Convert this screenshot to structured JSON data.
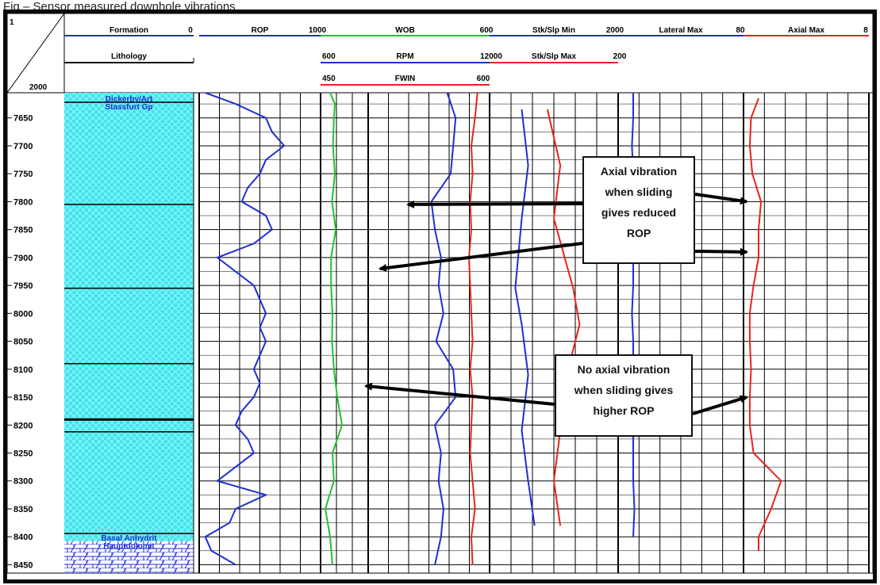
{
  "caption": "Fig  – Sensor measured downhole vibrations",
  "chart_data": {
    "type": "line",
    "corner_labels": {
      "top": "1",
      "bottom": "2000"
    },
    "header_tracks": {
      "row1": [
        {
          "name": "Formation",
          "left": "",
          "right": "0",
          "color": "#1f2fd0"
        },
        {
          "name": "ROP",
          "left": "",
          "right": "1000",
          "color": "#1f2fd0"
        },
        {
          "name": "WOB",
          "left": "",
          "right": "600",
          "color": "#22c22e"
        },
        {
          "name": "Stk/Slp Min",
          "left": "",
          "right": "2000",
          "color": "#1f2fd0"
        },
        {
          "name": "Lateral Max",
          "left": "",
          "right": "80",
          "color": "#1f2fd0"
        },
        {
          "name": "Axial Max",
          "left": "",
          "right": "8",
          "color": "#e8231f"
        }
      ],
      "row2": [
        {
          "name": "Lithology",
          "left": "",
          "right": "",
          "color": "#111111"
        },
        {
          "name": "RPM",
          "left": "600",
          "right": "12000",
          "color": "#1f2fd0"
        },
        {
          "name": "Stk/Slp Max",
          "left": "",
          "right": "200",
          "color": "#e8231f"
        }
      ],
      "row3": [
        {
          "name": "FWIN",
          "left": "450",
          "right": "600",
          "color": "#e8231f"
        }
      ]
    },
    "depth_axis": {
      "ylim": [
        7605,
        8465
      ],
      "ticks": [
        7650,
        7700,
        7750,
        7800,
        7850,
        7900,
        7950,
        8000,
        8050,
        8100,
        8150,
        8200,
        8250,
        8300,
        8350,
        8400,
        8450
      ]
    },
    "formations": [
      {
        "name": "Dickerby/Art",
        "top": 7608
      },
      {
        "name": "Stassfurt Gp",
        "top": 7622
      },
      {
        "name": "Basal Anhydrit",
        "top": 8394
      },
      {
        "name": "Hauptdolomit",
        "top": 8408
      }
    ],
    "lithology_boundaries": [
      7622,
      7805,
      7955,
      8090,
      8190,
      8212,
      8394
    ],
    "series": [
      {
        "name": "ROP",
        "track": 1,
        "color": "#1f2fd0",
        "depth": [
          7605,
          7625,
          7650,
          7675,
          7700,
          7725,
          7750,
          7775,
          7800,
          7825,
          7850,
          7875,
          7900,
          7925,
          7950,
          7975,
          8000,
          8025,
          8050,
          8075,
          8100,
          8125,
          8150,
          8175,
          8200,
          8225,
          8250,
          8275,
          8300,
          8325,
          8350,
          8375,
          8400,
          8425,
          8450
        ],
        "value": [
          0.05,
          0.3,
          0.55,
          0.6,
          0.7,
          0.55,
          0.5,
          0.4,
          0.35,
          0.55,
          0.6,
          0.45,
          0.15,
          0.3,
          0.45,
          0.5,
          0.55,
          0.5,
          0.55,
          0.5,
          0.45,
          0.5,
          0.45,
          0.35,
          0.3,
          0.4,
          0.45,
          0.3,
          0.15,
          0.55,
          0.3,
          0.25,
          0.05,
          0.1,
          0.3
        ]
      },
      {
        "name": "WOB",
        "track": 2,
        "color": "#22c22e",
        "depth": [
          7605,
          7625,
          7650,
          7700,
          7750,
          7800,
          7850,
          7900,
          7950,
          8000,
          8050,
          8100,
          8150,
          8200,
          8250,
          8300,
          8350,
          8400,
          8450
        ],
        "value": [
          0.2,
          0.3,
          0.28,
          0.26,
          0.3,
          0.24,
          0.32,
          0.22,
          0.22,
          0.25,
          0.24,
          0.28,
          0.35,
          0.45,
          0.25,
          0.28,
          0.1,
          0.2,
          0.25
        ]
      },
      {
        "name": "FWIN",
        "track": 3,
        "color": "#e8231f",
        "depth": [
          7605,
          7650,
          7700,
          7750,
          7800,
          7850,
          7900,
          7950,
          8000,
          8050,
          8100,
          8150,
          8200,
          8250,
          8300,
          8350,
          8400,
          8450
        ],
        "value": [
          0.9,
          0.88,
          0.85,
          0.86,
          0.84,
          0.85,
          0.83,
          0.84,
          0.85,
          0.86,
          0.84,
          0.86,
          0.85,
          0.84,
          0.86,
          0.88,
          0.85,
          0.86
        ]
      },
      {
        "name": "RPM",
        "track": 3,
        "color": "#1f2fd0",
        "depth": [
          7605,
          7650,
          7700,
          7750,
          7800,
          7850,
          7900,
          7950,
          8000,
          8050,
          8100,
          8150,
          8200,
          8250,
          8300,
          8350,
          8400,
          8450
        ],
        "value": [
          0.65,
          0.72,
          0.7,
          0.68,
          0.52,
          0.55,
          0.6,
          0.58,
          0.62,
          0.56,
          0.7,
          0.72,
          0.55,
          0.6,
          0.58,
          0.62,
          0.6,
          0.55
        ]
      },
      {
        "name": "Stk/Slp Max",
        "track": 4,
        "color": "#e8231f",
        "depth": [
          7635,
          7735,
          7830,
          7955,
          8020,
          8110,
          8210,
          8300,
          8380
        ],
        "value": [
          0.45,
          0.55,
          0.5,
          0.65,
          0.7,
          0.6,
          0.55,
          0.5,
          0.55
        ]
      },
      {
        "name": "Stk/Slp Min",
        "track": 4,
        "color": "#1f2fd0",
        "depth": [
          7635,
          7735,
          7830,
          7955,
          8020,
          8110,
          8210,
          8300,
          8380
        ],
        "value": [
          0.25,
          0.3,
          0.25,
          0.2,
          0.25,
          0.3,
          0.25,
          0.3,
          0.35
        ]
      },
      {
        "name": "Lateral Max",
        "track": 5,
        "color": "#1f2fd0",
        "depth": [
          7605,
          7650,
          7700,
          7750,
          7800,
          7850,
          7900,
          7950,
          8000,
          8050,
          8100,
          8150,
          8200,
          8250,
          8300,
          8350,
          8400
        ],
        "value": [
          0.12,
          0.12,
          0.11,
          0.12,
          0.12,
          0.13,
          0.12,
          0.12,
          0.11,
          0.12,
          0.12,
          0.13,
          0.12,
          0.12,
          0.12,
          0.13,
          0.12
        ]
      },
      {
        "name": "Axial Max",
        "track": 6,
        "color": "#e8231f",
        "depth": [
          7615,
          7650,
          7700,
          7750,
          7800,
          7850,
          7900,
          7950,
          8000,
          8050,
          8100,
          8150,
          8200,
          8250,
          8300,
          8350,
          8400,
          8425
        ],
        "value": [
          0.12,
          0.06,
          0.05,
          0.07,
          0.14,
          0.12,
          0.12,
          0.08,
          0.05,
          0.05,
          0.06,
          0.05,
          0.05,
          0.08,
          0.3,
          0.22,
          0.12,
          0.12
        ]
      }
    ],
    "annotations": [
      {
        "lines": [
          "Axial vibration",
          "when sliding",
          "gives reduced",
          "ROP"
        ],
        "arrows": [
          {
            "track": 3,
            "depth": 7805
          },
          {
            "track": 3,
            "depth": 7920
          },
          {
            "track": 6,
            "depth": 7800
          },
          {
            "track": 6,
            "depth": 7890
          }
        ]
      },
      {
        "lines": [
          "No axial vibration",
          "when sliding gives",
          "higher ROP"
        ],
        "arrows": [
          {
            "track": 2,
            "depth": 8130
          },
          {
            "track": 6,
            "depth": 8150
          }
        ]
      }
    ]
  }
}
